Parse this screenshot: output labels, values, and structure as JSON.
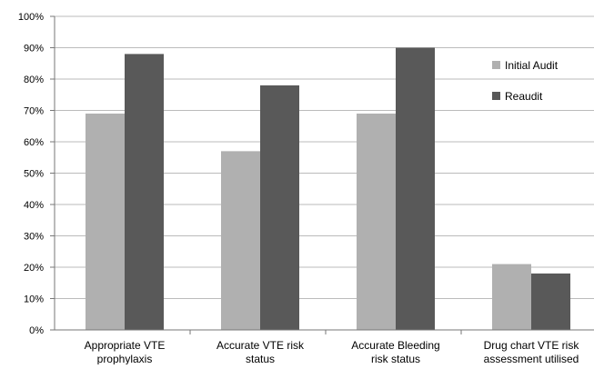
{
  "chart_data": {
    "type": "bar",
    "categories": [
      [
        "Appropriate VTE",
        "prophylaxis"
      ],
      [
        "Accurate VTE risk",
        "status"
      ],
      [
        "Accurate Bleeding",
        "risk status"
      ],
      [
        "Drug chart VTE risk",
        "assessment utilised"
      ]
    ],
    "series": [
      {
        "name": "Initial Audit",
        "values": [
          69,
          57,
          69,
          21
        ]
      },
      {
        "name": "Reaudit",
        "values": [
          88,
          78,
          90,
          18
        ]
      }
    ],
    "ylim": [
      0,
      100
    ],
    "yticks": [
      "0%",
      "10%",
      "20%",
      "30%",
      "40%",
      "50%",
      "60%",
      "70%",
      "80%",
      "90%",
      "100%"
    ],
    "ytick_values": [
      0,
      10,
      20,
      30,
      40,
      50,
      60,
      70,
      80,
      90,
      100
    ],
    "grid": true,
    "legend_placement": "right",
    "colors": {
      "series_initial": "#b0b0b0",
      "series_reaudit": "#595959",
      "grid": "#bbbbbb",
      "axis": "#777777"
    }
  }
}
